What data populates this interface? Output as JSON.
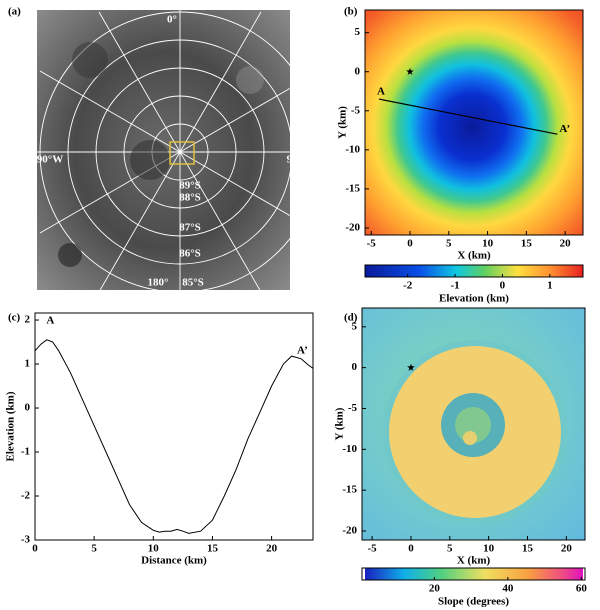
{
  "chart_data": [
    {
      "type": "image",
      "panel": "(a)",
      "labels": [
        "0°",
        "90°W",
        "90°E",
        "180°",
        "89°S",
        "88°S",
        "87°S",
        "86°S",
        "85°S"
      ]
    },
    {
      "type": "heatmap",
      "panel": "(b)",
      "xlabel": "X (km)",
      "ylabel": "Y (km)",
      "xlim": [
        -5.8,
        22.3
      ],
      "ylim": [
        -20.9,
        7.9
      ],
      "xticks": [
        -5,
        0,
        5,
        10,
        15,
        20
      ],
      "yticks": [
        5,
        0,
        -5,
        -10,
        -15,
        -20
      ],
      "map": "elevation",
      "star": {
        "x": 0,
        "y": 0
      },
      "profile": {
        "x": [
          -4,
          19
        ],
        "y": [
          -3.5,
          -8
        ],
        "labels": [
          "A",
          "A’"
        ]
      },
      "colorbar": {
        "label": "Elevation (km)",
        "lim": [
          -2.9,
          1.7
        ],
        "ticks": [
          -2,
          -1,
          0,
          1
        ]
      }
    },
    {
      "type": "line",
      "panel": "(c)",
      "xlabel": "Distance (km)",
      "ylabel": "Elevation (km)",
      "xlim": [
        0,
        23.5
      ],
      "ylim": [
        -3,
        2.16
      ],
      "xticks": [
        0,
        5,
        10,
        15,
        20
      ],
      "yticks": [
        -3,
        -2,
        -1,
        0,
        1,
        2
      ],
      "color": "#000000",
      "annotations": [
        "A",
        "A’"
      ],
      "x": [
        0,
        0.5,
        1,
        1.5,
        2,
        3,
        4,
        5,
        6,
        7,
        8,
        9,
        10,
        10.5,
        11,
        11.5,
        12,
        12.5,
        13,
        14,
        15,
        16,
        17,
        18,
        19,
        20,
        21,
        21.7,
        22.5,
        23,
        23.5
      ],
      "values": [
        1.3,
        1.45,
        1.55,
        1.5,
        1.3,
        0.8,
        0.2,
        -0.4,
        -1.0,
        -1.6,
        -2.2,
        -2.6,
        -2.78,
        -2.82,
        -2.8,
        -2.8,
        -2.76,
        -2.8,
        -2.85,
        -2.8,
        -2.55,
        -2.0,
        -1.4,
        -0.7,
        -0.1,
        0.5,
        1.0,
        1.18,
        1.12,
        1.0,
        0.9
      ]
    },
    {
      "type": "heatmap",
      "panel": "(d)",
      "xlabel": "X (km)",
      "ylabel": "Y (km)",
      "xlim": [
        -6.3,
        22.4
      ],
      "ylim": [
        -21.1,
        7.3
      ],
      "xticks": [
        -5,
        0,
        5,
        10,
        15,
        20
      ],
      "yticks": [
        5,
        0,
        -5,
        -10,
        -15,
        -20
      ],
      "map": "slope",
      "star": {
        "x": 0,
        "y": 0
      },
      "colorbar": {
        "label": "Slope (degrees)",
        "lim": [
          0.3,
          61
        ],
        "ticks": [
          20,
          40,
          60
        ]
      }
    }
  ]
}
